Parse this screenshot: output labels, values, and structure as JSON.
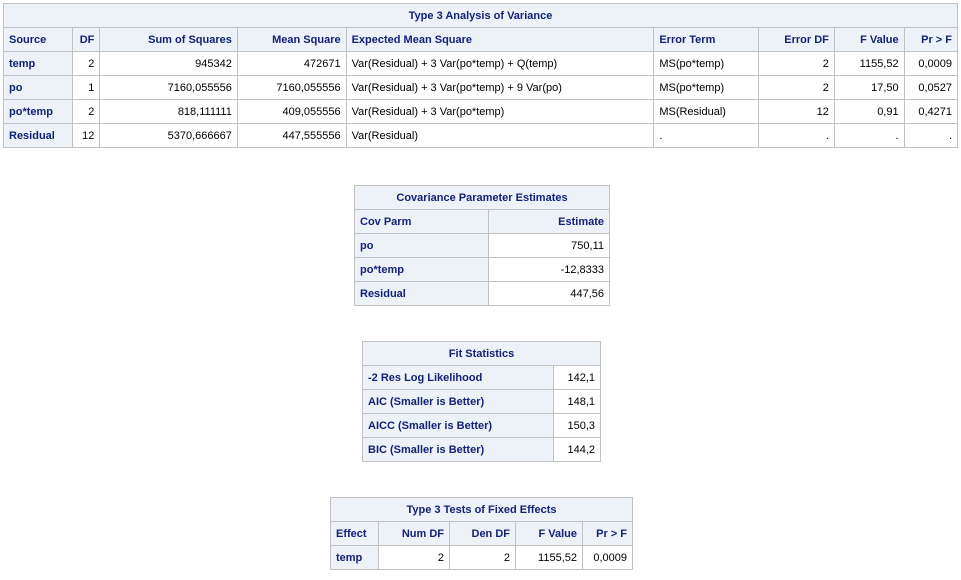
{
  "anova": {
    "title": "Type 3 Analysis of Variance",
    "headers": [
      "Source",
      "DF",
      "Sum of Squares",
      "Mean Square",
      "Expected Mean Square",
      "Error Term",
      "Error DF",
      "F Value",
      "Pr > F"
    ],
    "rows": [
      [
        "temp",
        "2",
        "945342",
        "472671",
        "Var(Residual) + 3 Var(po*temp) + Q(temp)",
        "MS(po*temp)",
        "2",
        "1155,52",
        "0,0009"
      ],
      [
        "po",
        "1",
        "7160,055556",
        "7160,055556",
        "Var(Residual) + 3 Var(po*temp) + 9 Var(po)",
        "MS(po*temp)",
        "2",
        "17,50",
        "0,0527"
      ],
      [
        "po*temp",
        "2",
        "818,111111",
        "409,055556",
        "Var(Residual) + 3 Var(po*temp)",
        "MS(Residual)",
        "12",
        "0,91",
        "0,4271"
      ],
      [
        "Residual",
        "12",
        "5370,666667",
        "447,555556",
        "Var(Residual)",
        ".",
        ".",
        ".",
        "."
      ]
    ]
  },
  "cov": {
    "title": "Covariance Parameter Estimates",
    "headers": [
      "Cov Parm",
      "Estimate"
    ],
    "rows": [
      [
        "po",
        "750,11"
      ],
      [
        "po*temp",
        "-12,8333"
      ],
      [
        "Residual",
        "447,56"
      ]
    ]
  },
  "fit": {
    "title": "Fit Statistics",
    "rows": [
      [
        "-2 Res Log Likelihood",
        "142,1"
      ],
      [
        "AIC (Smaller is Better)",
        "148,1"
      ],
      [
        "AICC (Smaller is Better)",
        "150,3"
      ],
      [
        "BIC (Smaller is Better)",
        "144,2"
      ]
    ]
  },
  "fixed": {
    "title": "Type 3 Tests of Fixed Effects",
    "headers": [
      "Effect",
      "Num DF",
      "Den DF",
      "F Value",
      "Pr > F"
    ],
    "rows": [
      [
        "temp",
        "2",
        "2",
        "1155,52",
        "0,0009"
      ]
    ]
  }
}
